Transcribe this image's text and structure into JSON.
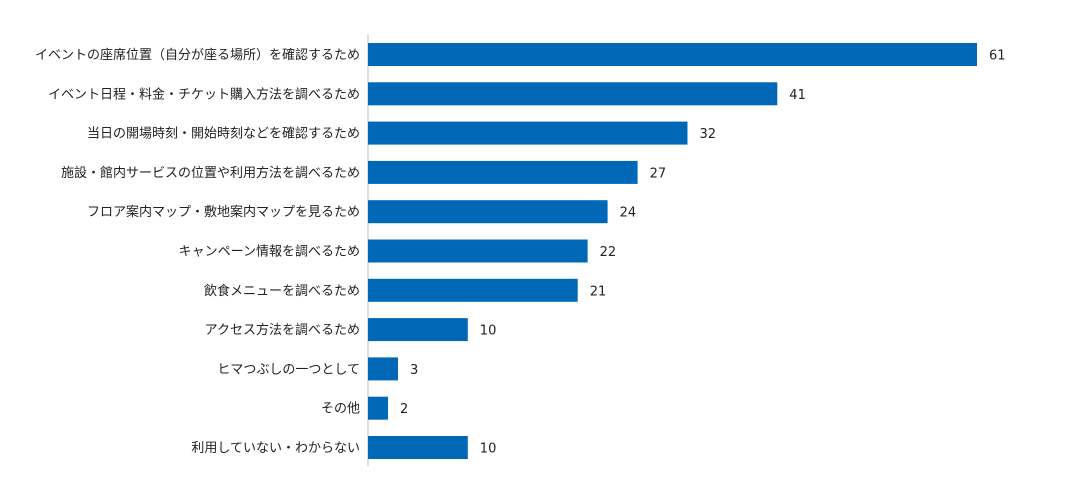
{
  "chart_data": {
    "type": "bar",
    "orientation": "horizontal",
    "title": "",
    "xlabel": "",
    "ylabel": "",
    "categories": [
      "イベントの座席位置（自分が座る場所）を確認するため",
      "イベント日程・料金・チケット購入方法を調べるため",
      "当日の開場時刻・開始時刻などを確認するため",
      "施設・館内サービスの位置や利用方法を調べるため",
      "フロア案内マップ・敷地案内マップを見るため",
      "キャンペーン情報を調べるため",
      "飲食メニューを調べるため",
      "アクセス方法を調べるため",
      "ヒマつぶしの一つとして",
      "その他",
      "利用していない・わからない"
    ],
    "values": [
      61,
      41,
      32,
      27,
      24,
      22,
      21,
      10,
      3,
      2,
      10
    ],
    "xlim": [
      0,
      61
    ],
    "data_labels": true,
    "grid": false,
    "legend": "none",
    "bar_color": "#0068b7"
  }
}
